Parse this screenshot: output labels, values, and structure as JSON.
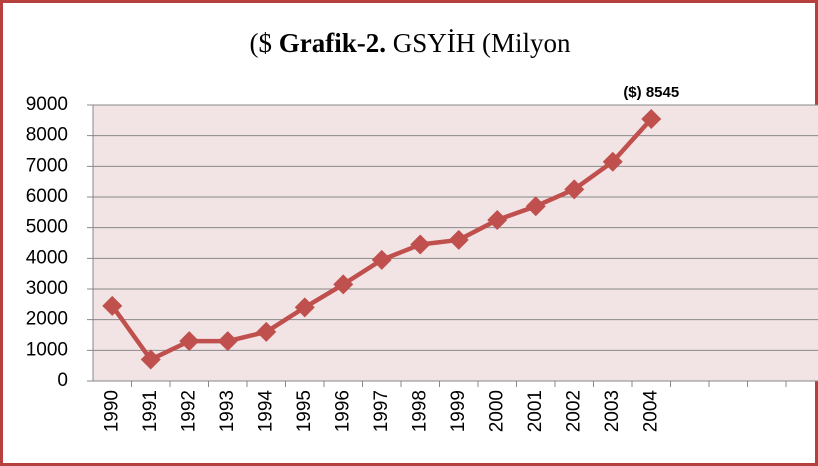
{
  "chart_data": {
    "type": "line",
    "title": [
      "($",
      "Grafik-2.",
      "GSYİH (Milyon"
    ],
    "categories": [
      "1990",
      "1991",
      "1992",
      "1993",
      "1994",
      "1995",
      "1996",
      "1997",
      "1998",
      "1999",
      "2000",
      "2001",
      "2002",
      "2003",
      "2004",
      null,
      null,
      null,
      null
    ],
    "series": [
      {
        "name": "GSYİH",
        "color": "#c0504d",
        "values": [
          2450,
          700,
          1300,
          1300,
          1600,
          2400,
          3150,
          3950,
          4450,
          4600,
          5250,
          5700,
          6250,
          7150,
          8545,
          null,
          null,
          null,
          null
        ],
        "value_labels": [
          null,
          null,
          null,
          null,
          null,
          null,
          null,
          null,
          null,
          null,
          null,
          null,
          null,
          null,
          "($) 8545",
          null,
          null,
          null,
          null
        ]
      }
    ],
    "ylim": [
      0,
      9000
    ],
    "yticks": [
      0,
      1000,
      2000,
      3000,
      4000,
      5000,
      6000,
      7000,
      8000,
      9000
    ],
    "grid": true
  }
}
